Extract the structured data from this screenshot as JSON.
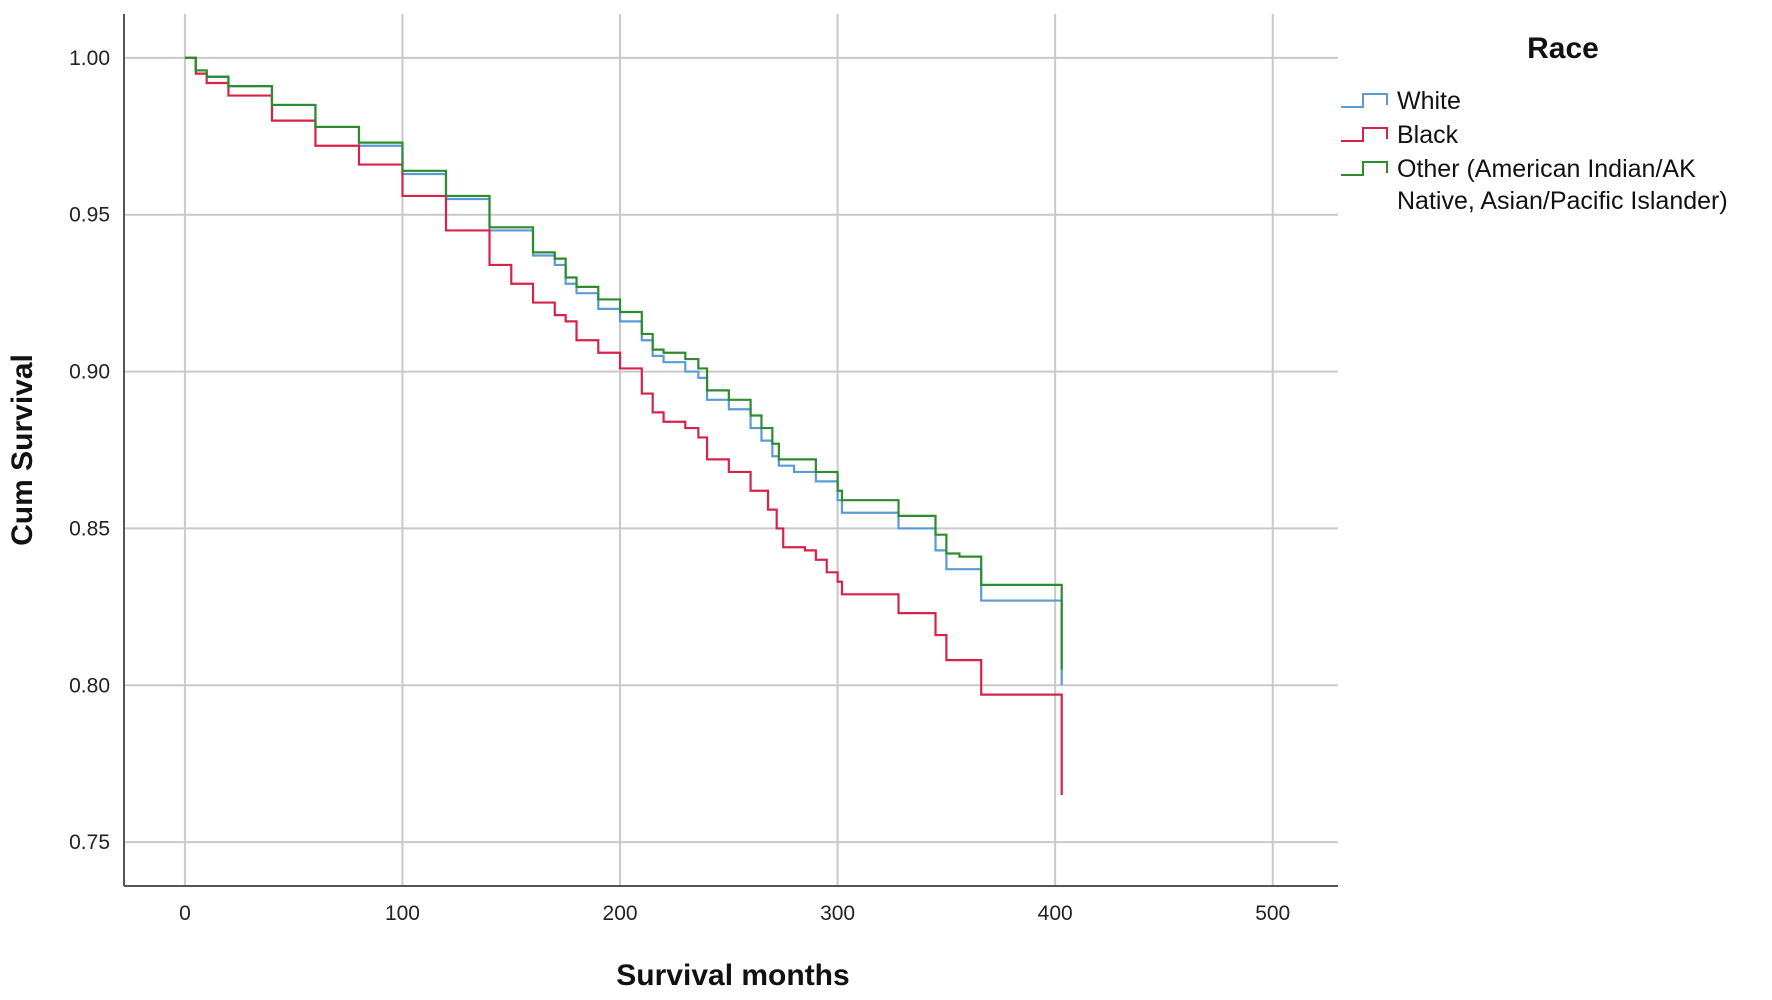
{
  "chart_data": {
    "type": "line",
    "xlabel": "Survival months",
    "ylabel": "Cum Survival",
    "xlim": [
      -28,
      530
    ],
    "ylim": [
      0.736,
      1.014
    ],
    "x_ticks": [
      0,
      100,
      200,
      300,
      400,
      500
    ],
    "x_tick_labels": [
      "0",
      "100",
      "200",
      "300",
      "400",
      "500"
    ],
    "y_ticks": [
      0.75,
      0.8,
      0.85,
      0.9,
      0.95,
      1.0
    ],
    "y_tick_labels": [
      "0.75",
      "0.80",
      "0.85",
      "0.90",
      "0.95",
      "1.00"
    ],
    "grid": true,
    "step": true,
    "legend": {
      "title": "Race",
      "position": "right",
      "entries": [
        {
          "label": "White",
          "color": "#5B9BD5"
        },
        {
          "label": "Black",
          "color": "#D6234A"
        },
        {
          "label_lines": [
            "Other (American Indian/AK",
            "Native, Asian/Pacific Islander)"
          ],
          "color": "#2E8B2E"
        }
      ]
    },
    "series": [
      {
        "name": "White",
        "color": "#5B9BD5",
        "points": [
          [
            0,
            1.0
          ],
          [
            5,
            0.996
          ],
          [
            10,
            0.994
          ],
          [
            20,
            0.991
          ],
          [
            40,
            0.985
          ],
          [
            60,
            0.978
          ],
          [
            80,
            0.972
          ],
          [
            100,
            0.963
          ],
          [
            120,
            0.955
          ],
          [
            140,
            0.945
          ],
          [
            160,
            0.937
          ],
          [
            170,
            0.934
          ],
          [
            175,
            0.928
          ],
          [
            180,
            0.925
          ],
          [
            190,
            0.92
          ],
          [
            200,
            0.916
          ],
          [
            210,
            0.91
          ],
          [
            215,
            0.905
          ],
          [
            220,
            0.903
          ],
          [
            230,
            0.9
          ],
          [
            236,
            0.898
          ],
          [
            240,
            0.891
          ],
          [
            250,
            0.888
          ],
          [
            260,
            0.882
          ],
          [
            265,
            0.878
          ],
          [
            270,
            0.873
          ],
          [
            273,
            0.87
          ],
          [
            280,
            0.868
          ],
          [
            290,
            0.865
          ],
          [
            300,
            0.859
          ],
          [
            302,
            0.855
          ],
          [
            328,
            0.85
          ],
          [
            345,
            0.843
          ],
          [
            350,
            0.837
          ],
          [
            356,
            0.837
          ],
          [
            366,
            0.827
          ],
          [
            403,
            0.827
          ],
          [
            403,
            0.8
          ]
        ]
      },
      {
        "name": "Black",
        "color": "#D6234A",
        "points": [
          [
            0,
            1.0
          ],
          [
            5,
            0.995
          ],
          [
            10,
            0.992
          ],
          [
            20,
            0.988
          ],
          [
            40,
            0.98
          ],
          [
            60,
            0.972
          ],
          [
            80,
            0.966
          ],
          [
            100,
            0.956
          ],
          [
            120,
            0.945
          ],
          [
            140,
            0.934
          ],
          [
            150,
            0.928
          ],
          [
            160,
            0.922
          ],
          [
            170,
            0.918
          ],
          [
            175,
            0.916
          ],
          [
            180,
            0.91
          ],
          [
            190,
            0.906
          ],
          [
            200,
            0.901
          ],
          [
            210,
            0.893
          ],
          [
            215,
            0.887
          ],
          [
            220,
            0.884
          ],
          [
            230,
            0.882
          ],
          [
            236,
            0.879
          ],
          [
            240,
            0.872
          ],
          [
            250,
            0.868
          ],
          [
            260,
            0.862
          ],
          [
            268,
            0.856
          ],
          [
            272,
            0.85
          ],
          [
            275,
            0.844
          ],
          [
            285,
            0.843
          ],
          [
            290,
            0.84
          ],
          [
            295,
            0.836
          ],
          [
            300,
            0.833
          ],
          [
            302,
            0.829
          ],
          [
            328,
            0.823
          ],
          [
            345,
            0.816
          ],
          [
            350,
            0.808
          ],
          [
            366,
            0.797
          ],
          [
            403,
            0.797
          ],
          [
            403,
            0.765
          ]
        ]
      },
      {
        "name": "Other (American Indian/AK Native, Asian/Pacific Islander)",
        "color": "#2E8B2E",
        "points": [
          [
            0,
            1.0
          ],
          [
            5,
            0.996
          ],
          [
            10,
            0.994
          ],
          [
            20,
            0.991
          ],
          [
            40,
            0.985
          ],
          [
            60,
            0.978
          ],
          [
            80,
            0.973
          ],
          [
            100,
            0.964
          ],
          [
            120,
            0.956
          ],
          [
            140,
            0.946
          ],
          [
            160,
            0.938
          ],
          [
            170,
            0.936
          ],
          [
            175,
            0.93
          ],
          [
            180,
            0.927
          ],
          [
            190,
            0.923
          ],
          [
            200,
            0.919
          ],
          [
            210,
            0.912
          ],
          [
            215,
            0.907
          ],
          [
            220,
            0.906
          ],
          [
            230,
            0.904
          ],
          [
            236,
            0.901
          ],
          [
            240,
            0.894
          ],
          [
            250,
            0.891
          ],
          [
            260,
            0.886
          ],
          [
            265,
            0.882
          ],
          [
            270,
            0.877
          ],
          [
            273,
            0.872
          ],
          [
            280,
            0.872
          ],
          [
            290,
            0.868
          ],
          [
            300,
            0.862
          ],
          [
            302,
            0.859
          ],
          [
            328,
            0.854
          ],
          [
            345,
            0.848
          ],
          [
            350,
            0.842
          ],
          [
            356,
            0.841
          ],
          [
            366,
            0.832
          ],
          [
            403,
            0.832
          ],
          [
            403,
            0.805
          ]
        ]
      }
    ]
  }
}
